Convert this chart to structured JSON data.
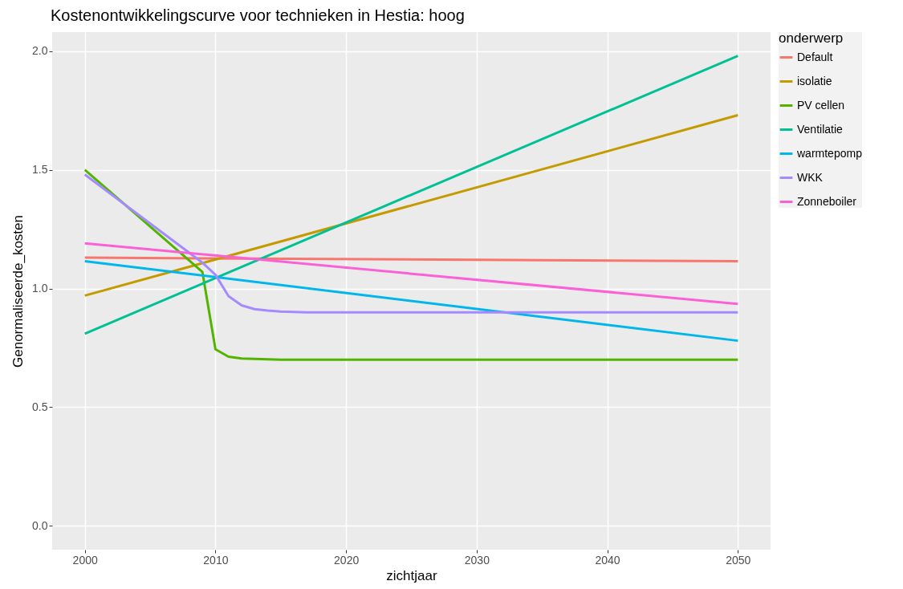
{
  "chart_data": {
    "type": "line",
    "title": "Kostenontwikkelingscurve voor technieken in Hestia: hoog",
    "xlabel": "zichtjaar",
    "ylabel": "Genormaliseerde_kosten",
    "legend_title": "onderwerp",
    "legend": "right",
    "grid": true,
    "line_style": "solid",
    "marker": "none",
    "xlim": [
      1997.5,
      2052.5
    ],
    "xticks": [
      2000,
      2010,
      2020,
      2030,
      2040,
      2050
    ],
    "ylim": [
      -0.1,
      2.08
    ],
    "yticks": [
      {
        "value": 0,
        "label": "0.0"
      },
      {
        "value": 0.5,
        "label": "0.5"
      },
      {
        "value": 1,
        "label": "1.0"
      },
      {
        "value": 1.5,
        "label": "1.5"
      },
      {
        "value": 2,
        "label": "2.0"
      }
    ],
    "series": [
      {
        "name": "Default",
        "color": "#f8766d",
        "x": [
          2000,
          2050
        ],
        "values": [
          1.13,
          1.115
        ]
      },
      {
        "name": "isolatie",
        "color": "#c49a00",
        "x": [
          2000,
          2050
        ],
        "values": [
          0.97,
          1.73
        ]
      },
      {
        "name": "PV cellen",
        "color": "#53b400",
        "x": [
          2000,
          2009,
          2010,
          2011,
          2012,
          2015,
          2050
        ],
        "values": [
          1.5,
          1.07,
          0.744,
          0.713,
          0.705,
          0.7,
          0.7
        ]
      },
      {
        "name": "Ventilatie",
        "color": "#00c094",
        "x": [
          2000,
          2050
        ],
        "values": [
          0.81,
          1.98
        ]
      },
      {
        "name": "warmtepomp",
        "color": "#00b6eb",
        "x": [
          2000,
          2050
        ],
        "values": [
          1.115,
          0.78
        ]
      },
      {
        "name": "WKK",
        "color": "#a58aff",
        "x": [
          2000,
          2009,
          2010,
          2011,
          2012,
          2013,
          2014,
          2015,
          2017,
          2050
        ],
        "values": [
          1.48,
          1.109,
          1.058,
          0.968,
          0.929,
          0.913,
          0.907,
          0.903,
          0.9,
          0.9
        ]
      },
      {
        "name": "Zonneboiler",
        "color": "#fb61d7",
        "x": [
          2000,
          2050
        ],
        "values": [
          1.19,
          0.935
        ]
      }
    ]
  }
}
